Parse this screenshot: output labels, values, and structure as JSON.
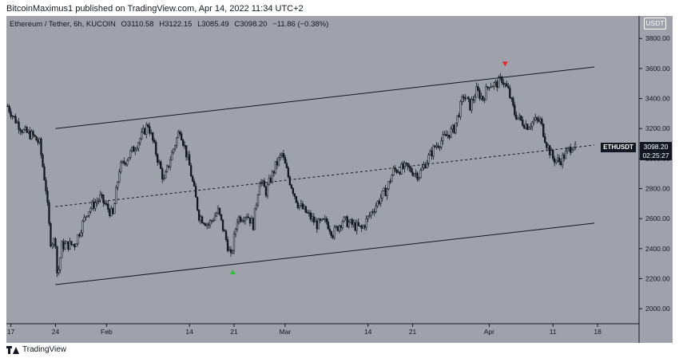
{
  "header": {
    "publish_line": "BitcoinMaximus1 published on TradingView.com, Apr 14, 2022 11:34 UTC+2"
  },
  "legend": {
    "symbol_desc": "Ethereum / Tether, 6h, KUCOIN",
    "o_label": "O",
    "o_value": "3110.58",
    "h_label": "H",
    "h_value": "3122.15",
    "l_label": "L",
    "l_value": "3085.49",
    "c_label": "C",
    "c_value": "3098.20",
    "change": "−11.86 (−0.38%)"
  },
  "currency_badge": "USDT",
  "price_tag": {
    "symbol": "ETHUSDT",
    "price": "3098.20",
    "countdown": "02:25:27"
  },
  "footer": {
    "brand": "TradingView"
  },
  "colors": {
    "background": "#a0a2ab",
    "candle": "#131722",
    "marker_top": "#e0242b",
    "marker_bottom": "#2fbf3f"
  },
  "chart_data": {
    "type": "candlestick",
    "symbol": "ETHUSDT",
    "timeframe": "6h",
    "y_ticks": [
      2000,
      2200,
      2400,
      2600,
      2800,
      3000,
      3200,
      3400,
      3600,
      3800
    ],
    "y_tick_labels": [
      "2000.00",
      "2200.00",
      "2400.00",
      "2600.00",
      "2800.00",
      "3000.00",
      "3200.00",
      "3400.00",
      "3600.00",
      "3800.00"
    ],
    "ylim": [
      1900,
      3950
    ],
    "x_ticks": [
      {
        "day": -7,
        "label": "17"
      },
      {
        "day": 0,
        "label": "24"
      },
      {
        "day": 8,
        "label": "Feb"
      },
      {
        "day": 21,
        "label": "14"
      },
      {
        "day": 28,
        "label": "21"
      },
      {
        "day": 36,
        "label": "Mar"
      },
      {
        "day": 49,
        "label": "14"
      },
      {
        "day": 56,
        "label": "21"
      },
      {
        "day": 68,
        "label": "Apr"
      },
      {
        "day": 78,
        "label": "11"
      },
      {
        "day": 85,
        "label": "18"
      }
    ],
    "xlim": [
      -7.7,
      91.5
    ],
    "price_path": [
      [
        -7.5,
        3350
      ],
      [
        -6.5,
        3270
      ],
      [
        -5,
        3180
      ],
      [
        -3.5,
        3150
      ],
      [
        -2.5,
        3100
      ],
      [
        -1.5,
        2800
      ],
      [
        -0.8,
        2450
      ],
      [
        0,
        2450
      ],
      [
        0.3,
        2200
      ],
      [
        1,
        2420
      ],
      [
        3,
        2430
      ],
      [
        5,
        2650
      ],
      [
        7,
        2740
      ],
      [
        9,
        2620
      ],
      [
        10,
        2930
      ],
      [
        12,
        3050
      ],
      [
        13.5,
        3150
      ],
      [
        14.5,
        3230
      ],
      [
        16,
        3000
      ],
      [
        17,
        2850
      ],
      [
        18,
        3000
      ],
      [
        19.5,
        3200
      ],
      [
        21,
        2950
      ],
      [
        22.5,
        2620
      ],
      [
        24,
        2560
      ],
      [
        25.5,
        2650
      ],
      [
        26.5,
        2500
      ],
      [
        27.5,
        2340
      ],
      [
        28.5,
        2600
      ],
      [
        30,
        2630
      ],
      [
        31,
        2560
      ],
      [
        32,
        2860
      ],
      [
        33,
        2780
      ],
      [
        34.5,
        2950
      ],
      [
        35.5,
        3030
      ],
      [
        36.5,
        2880
      ],
      [
        38,
        2700
      ],
      [
        39.5,
        2630
      ],
      [
        41,
        2560
      ],
      [
        42.5,
        2580
      ],
      [
        43.5,
        2500
      ],
      [
        45,
        2590
      ],
      [
        46.5,
        2560
      ],
      [
        48,
        2530
      ],
      [
        49.5,
        2640
      ],
      [
        51,
        2740
      ],
      [
        52,
        2800
      ],
      [
        53,
        2920
      ],
      [
        55,
        2940
      ],
      [
        57,
        2890
      ],
      [
        58,
        2970
      ],
      [
        59.5,
        3080
      ],
      [
        61,
        3140
      ],
      [
        62.5,
        3200
      ],
      [
        64,
        3420
      ],
      [
        65,
        3350
      ],
      [
        66,
        3450
      ],
      [
        67,
        3400
      ],
      [
        68,
        3500
      ],
      [
        69,
        3490
      ],
      [
        70,
        3530
      ],
      [
        71,
        3450
      ],
      [
        72,
        3300
      ],
      [
        73,
        3250
      ],
      [
        74,
        3220
      ],
      [
        75,
        3250
      ],
      [
        76,
        3250
      ],
      [
        77,
        3100
      ],
      [
        78,
        3000
      ],
      [
        79,
        2980
      ],
      [
        80,
        3030
      ],
      [
        81,
        3090
      ],
      [
        81.5,
        3098.2
      ]
    ],
    "trend_lines": [
      {
        "name": "upper-channel",
        "style": "solid",
        "points": [
          [
            0,
            3200
          ],
          [
            84.5,
            3610
          ]
        ]
      },
      {
        "name": "lower-channel",
        "style": "solid",
        "points": [
          [
            0,
            2160
          ],
          [
            84.5,
            2570
          ]
        ]
      },
      {
        "name": "mid-channel",
        "style": "dashed",
        "points": [
          [
            0,
            2680
          ],
          [
            84.5,
            3090
          ]
        ]
      }
    ],
    "markers": [
      {
        "name": "top-marker",
        "day": 70.5,
        "price": 3630,
        "shape": "triangle-down",
        "color": "#e0242b"
      },
      {
        "name": "bottom-marker",
        "day": 27.8,
        "price": 2245,
        "shape": "triangle-up",
        "color": "#2fbf3f"
      }
    ],
    "last_price": 3098.2
  }
}
